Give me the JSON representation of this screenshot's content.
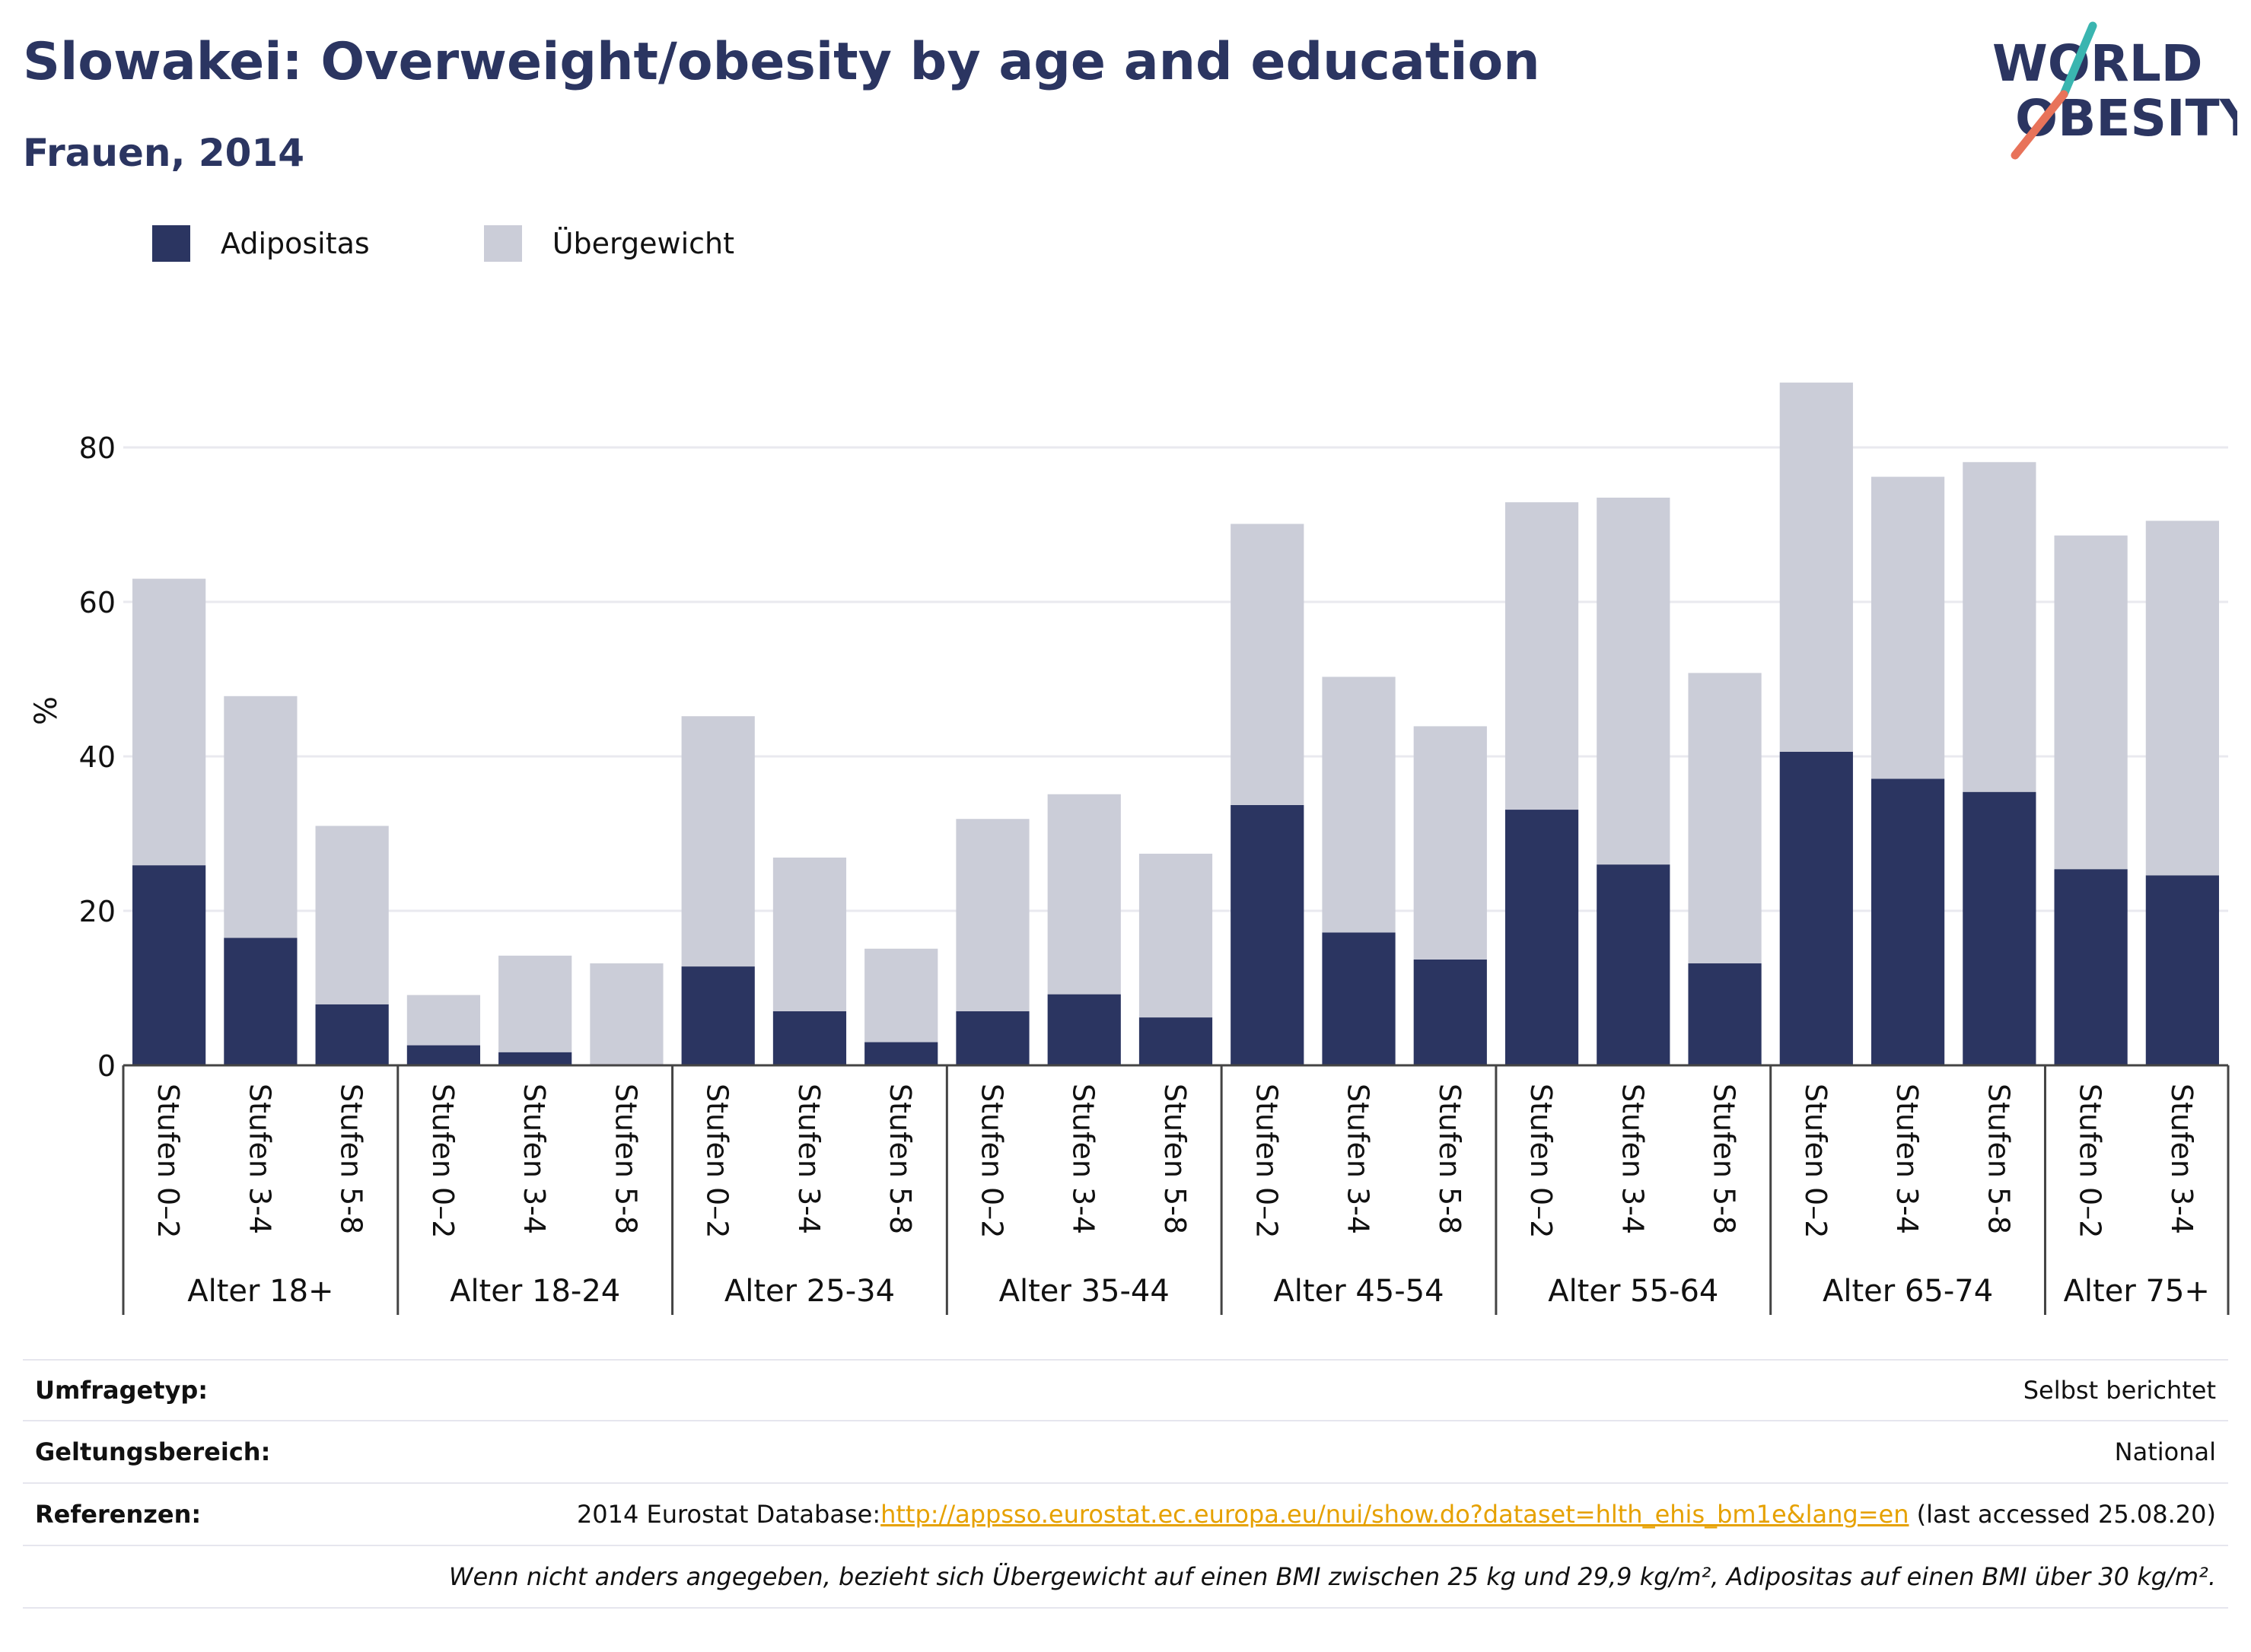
{
  "title": "Slowakei: Overweight/obesity by age and education",
  "subtitle": "Frauen, 2014",
  "logo": {
    "line1": "WORLD",
    "line2": "OBESITY",
    "accent_colors": [
      "#3ab5b0",
      "#e8735a"
    ]
  },
  "colors": {
    "obesity": "#2b3561",
    "overweight": "#cbcdd8",
    "text_dark": "#2b3561",
    "link": "#e6a100"
  },
  "legend": {
    "placement": "top-left",
    "items": [
      {
        "label": "Adipositas",
        "color": "#2b3561"
      },
      {
        "label": "Übergewicht",
        "color": "#cbcdd8"
      }
    ]
  },
  "chart_data": {
    "type": "bar",
    "stacked": true,
    "ylabel": "%",
    "ylim": [
      0,
      90
    ],
    "yticks": [
      0,
      20,
      40,
      60,
      80
    ],
    "grid": true,
    "groups": [
      {
        "label": "Alter 18+",
        "categories": [
          "Stufen 0–2",
          "Stufen 3-4",
          "Stufen 5-8"
        ],
        "obesity": [
          25.9,
          16.5,
          7.9
        ],
        "overweight": [
          37.1,
          31.3,
          23.1
        ]
      },
      {
        "label": "Alter 18-24",
        "categories": [
          "Stufen 0–2",
          "Stufen 3-4",
          "Stufen 5-8"
        ],
        "obesity": [
          2.6,
          1.7,
          0
        ],
        "overweight": [
          6.5,
          12.5,
          13.2
        ]
      },
      {
        "label": "Alter 25-34",
        "categories": [
          "Stufen 0–2",
          "Stufen 3-4",
          "Stufen 5-8"
        ],
        "obesity": [
          12.8,
          7.0,
          3.0
        ],
        "overweight": [
          32.4,
          19.9,
          12.1
        ]
      },
      {
        "label": "Alter 35-44",
        "categories": [
          "Stufen 0–2",
          "Stufen 3-4",
          "Stufen 5-8"
        ],
        "obesity": [
          7.0,
          9.2,
          6.2
        ],
        "overweight": [
          24.9,
          25.9,
          21.2
        ]
      },
      {
        "label": "Alter 45-54",
        "categories": [
          "Stufen 0–2",
          "Stufen 3-4",
          "Stufen 5-8"
        ],
        "obesity": [
          33.7,
          17.2,
          13.7
        ],
        "overweight": [
          36.4,
          33.1,
          30.2
        ]
      },
      {
        "label": "Alter 55-64",
        "categories": [
          "Stufen 0–2",
          "Stufen 3-4",
          "Stufen 5-8"
        ],
        "obesity": [
          33.1,
          26.0,
          13.2
        ],
        "overweight": [
          39.8,
          47.5,
          37.6
        ]
      },
      {
        "label": "Alter 65-74",
        "categories": [
          "Stufen 0–2",
          "Stufen 3-4",
          "Stufen 5-8"
        ],
        "obesity": [
          40.6,
          37.1,
          35.4
        ],
        "overweight": [
          47.8,
          39.1,
          42.7
        ]
      },
      {
        "label": "Alter 75+",
        "categories": [
          "Stufen 0–2",
          "Stufen 3-4"
        ],
        "obesity": [
          25.4,
          24.6
        ],
        "overweight": [
          43.2,
          45.9
        ]
      }
    ]
  },
  "footer": {
    "survey_label": "Umfragetyp:",
    "survey_value": "Selbst berichtet",
    "scope_label": "Geltungsbereich:",
    "scope_value": "National",
    "refs_label": "Referenzen:",
    "refs_prefix": "2014 Eurostat Database:",
    "refs_link": "http://appsso.eurostat.ec.europa.eu/nui/show.do?dataset=hlth_ehis_bm1e&lang=en",
    "refs_suffix": " (last accessed 25.08.20)",
    "note": "Wenn nicht anders angegeben, bezieht sich Übergewicht auf einen BMI zwischen 25 kg und 29,9 kg/m², Adipositas auf einen BMI über 30 kg/m²."
  }
}
